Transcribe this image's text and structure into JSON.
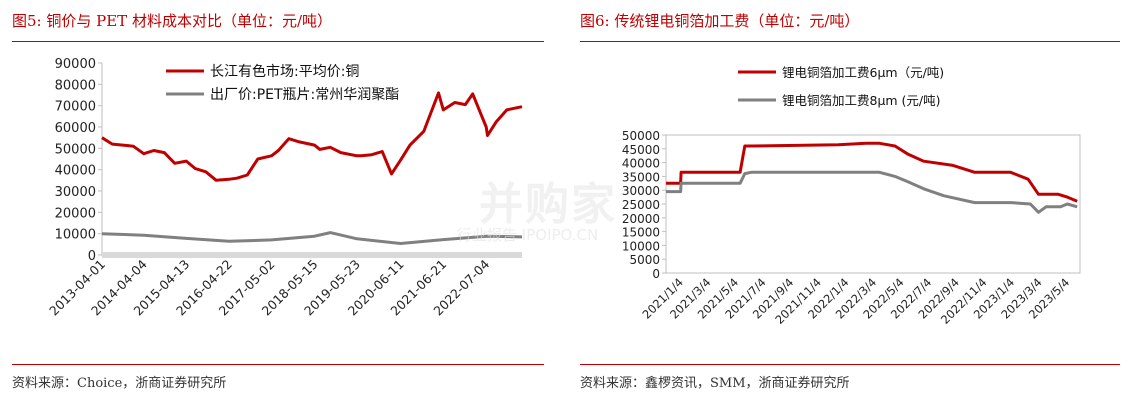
{
  "figures": [
    {
      "title": "图5:  铜价与 PET 材料成本对比（单位：元/吨）",
      "source": "资料来源：Choice，浙商证券研究所"
    },
    {
      "title": "图6:  传统锂电铜箔加工费（单位：元/吨）",
      "source": "资料来源：鑫椤资讯，SMM，浙商证券研究所"
    }
  ],
  "watermark": {
    "text": "并购家",
    "subtext": "行业报告 IPOIPO.CN"
  },
  "colors": {
    "red": "#c00000",
    "gray": "#808080",
    "accent": "#c00000"
  },
  "chart_data": [
    {
      "type": "line",
      "title": "",
      "xlabel": "",
      "ylabel": "",
      "ylim": [
        0,
        90000
      ],
      "yticks": [
        "0",
        "10000",
        "20000",
        "30000",
        "40000",
        "50000",
        "60000",
        "70000",
        "80000",
        "90000"
      ],
      "x_tick_labels": [
        "2013-04-01",
        "2014-04-04",
        "2015-04-13",
        "2016-04-22",
        "2017-05-02",
        "2018-05-15",
        "2019-05-23",
        "2020-06-11",
        "2021-06-21",
        "2022-07-04"
      ],
      "x_range": [
        "2013-04-01",
        "2023-05-15"
      ],
      "legend_position": "top",
      "grid": false,
      "series": [
        {
          "name": "长江有色市场:平均价:铜",
          "color": "#c00000",
          "x": [
            "2013-04-01",
            "2013-07-01",
            "2013-10-01",
            "2014-01-01",
            "2014-04-04",
            "2014-07-01",
            "2014-10-01",
            "2015-01-01",
            "2015-04-13",
            "2015-07-01",
            "2015-10-01",
            "2016-01-01",
            "2016-04-22",
            "2016-07-01",
            "2016-10-01",
            "2017-01-01",
            "2017-05-02",
            "2017-07-01",
            "2017-10-01",
            "2018-01-01",
            "2018-05-15",
            "2018-07-01",
            "2018-10-01",
            "2019-01-01",
            "2019-05-23",
            "2019-07-01",
            "2019-10-01",
            "2020-01-01",
            "2020-03-23",
            "2020-06-11",
            "2020-09-01",
            "2021-01-01",
            "2021-05-10",
            "2021-06-21",
            "2021-10-01",
            "2022-01-01",
            "2022-03-07",
            "2022-07-04",
            "2022-07-15",
            "2022-10-01",
            "2023-01-01",
            "2023-05-15"
          ],
          "values": [
            55000,
            52000,
            51500,
            51000,
            47500,
            49000,
            48000,
            43000,
            44000,
            40500,
            39000,
            35000,
            35500,
            36000,
            37500,
            45000,
            46500,
            49000,
            54500,
            53000,
            51500,
            49500,
            50500,
            48000,
            46500,
            46500,
            47000,
            48500,
            38000,
            44500,
            51500,
            58000,
            76000,
            68000,
            71500,
            70500,
            75500,
            60000,
            56000,
            62500,
            68000,
            69500
          ]
        },
        {
          "name": "出厂价:PET瓶片:常州华润聚酯",
          "color": "#808080",
          "x": [
            "2013-04-01",
            "2014-04-04",
            "2015-04-13",
            "2016-04-22",
            "2017-05-02",
            "2018-05-15",
            "2018-10-01",
            "2019-05-23",
            "2020-06-11",
            "2021-06-21",
            "2022-07-04",
            "2023-05-15"
          ],
          "values": [
            10000,
            9300,
            7800,
            6400,
            7100,
            8800,
            10500,
            7600,
            5400,
            7200,
            8800,
            8500
          ]
        }
      ]
    },
    {
      "type": "line",
      "title": "",
      "xlabel": "",
      "ylabel": "",
      "ylim": [
        0,
        50000
      ],
      "yticks": [
        "0",
        "5000",
        "10000",
        "15000",
        "20000",
        "25000",
        "30000",
        "35000",
        "40000",
        "45000",
        "50000"
      ],
      "x_tick_labels": [
        "2021/1/4",
        "2021/3/4",
        "2021/5/4",
        "2021/7/4",
        "2021/9/4",
        "2021/11/4",
        "2022/1/4",
        "2022/3/4",
        "2022/5/4",
        "2022/7/4",
        "2022/9/4",
        "2022/11/4",
        "2023/1/4",
        "2023/3/4",
        "2023/5/4"
      ],
      "x_range": [
        "2021-01-04",
        "2023-05-31"
      ],
      "legend_position": "top",
      "grid": false,
      "series": [
        {
          "name": "锂电铜箔加工费6μm（元/吨)",
          "color": "#c00000",
          "x": [
            "2021-01-04",
            "2021-02-04",
            "2021-02-05",
            "2021-06-10",
            "2021-06-20",
            "2021-07-04",
            "2022-01-04",
            "2022-03-04",
            "2022-04-01",
            "2022-05-04",
            "2022-06-01",
            "2022-07-04",
            "2022-09-04",
            "2022-10-20",
            "2023-01-04",
            "2023-02-10",
            "2023-03-04",
            "2023-04-15",
            "2023-05-04",
            "2023-05-25"
          ],
          "values": [
            32500,
            32500,
            36500,
            36500,
            46000,
            46000,
            46500,
            47000,
            47000,
            46000,
            43000,
            40500,
            39000,
            36500,
            36500,
            34000,
            28500,
            28500,
            27500,
            26000
          ]
        },
        {
          "name": "锂电铜箔加工费8μm   (元/吨)",
          "color": "#808080",
          "x": [
            "2021-01-04",
            "2021-02-04",
            "2021-02-05",
            "2021-06-10",
            "2021-06-20",
            "2021-07-04",
            "2022-01-04",
            "2022-04-01",
            "2022-05-04",
            "2022-06-01",
            "2022-07-04",
            "2022-08-15",
            "2022-10-20",
            "2023-01-04",
            "2023-02-15",
            "2023-03-04",
            "2023-03-20",
            "2023-04-20",
            "2023-05-04",
            "2023-05-25"
          ],
          "values": [
            29500,
            29500,
            32500,
            32500,
            36000,
            36500,
            36500,
            36500,
            35000,
            33000,
            30500,
            28000,
            25500,
            25500,
            25000,
            22000,
            24000,
            24000,
            25000,
            24000
          ]
        }
      ]
    }
  ]
}
